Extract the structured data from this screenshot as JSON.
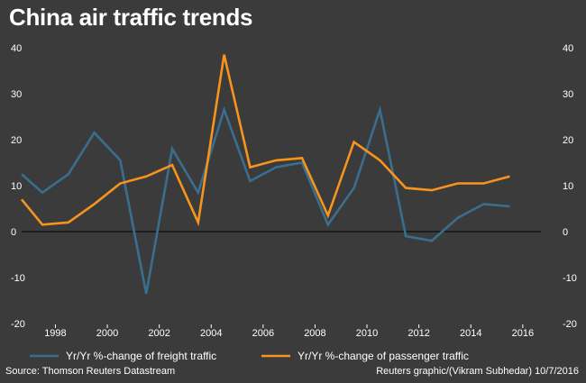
{
  "title": "China air traffic trends",
  "source": "Source: Thomson Reuters Datastream",
  "credit": "Reuters graphic/(Vikram Subhedar) 10/7/2016",
  "colors": {
    "background": "#3b3b3b",
    "freight": "#3a6e8f",
    "passenger": "#f7941d",
    "zero_line": "#000000",
    "text": "#ffffff"
  },
  "chart_data": {
    "type": "line",
    "title": "China air traffic trends",
    "xlabel": "",
    "ylabel": "",
    "xlim": [
      1996.7,
      2016.7
    ],
    "ylim": [
      -20,
      40
    ],
    "yticks": [
      -20,
      -10,
      0,
      10,
      20,
      30,
      40
    ],
    "xticks": [
      1998,
      2000,
      2002,
      2004,
      2006,
      2008,
      2010,
      2012,
      2014,
      2016
    ],
    "grid": false,
    "legend_position": "bottom",
    "series": [
      {
        "name": "Yr/Yr %-change of freight traffic",
        "color": "#3a6e8f",
        "x": [
          1996.7,
          1997.5,
          1998.5,
          1999.5,
          2000.5,
          2001.5,
          2002.5,
          2003.5,
          2004.5,
          2005.5,
          2006.5,
          2007.5,
          2008.5,
          2009.5,
          2010.5,
          2011.5,
          2012.5,
          2013.5,
          2014.5,
          2015.5
        ],
        "values": [
          12.5,
          8.5,
          12.5,
          21.5,
          15.5,
          -13.5,
          18.0,
          8.5,
          26.5,
          11.0,
          14.0,
          15.0,
          1.5,
          9.5,
          26.5,
          -1.0,
          -2.0,
          3.0,
          6.0,
          5.5
        ]
      },
      {
        "name": "Yr/Yr %-change of passenger traffic",
        "color": "#f7941d",
        "x": [
          1996.7,
          1997.5,
          1998.5,
          1999.5,
          2000.5,
          2001.5,
          2002.5,
          2003.5,
          2004.5,
          2005.5,
          2006.5,
          2007.5,
          2008.5,
          2009.5,
          2010.5,
          2011.5,
          2012.5,
          2013.5,
          2014.5,
          2015.5
        ],
        "values": [
          7.0,
          1.5,
          2.0,
          6.0,
          10.5,
          12.0,
          14.5,
          2.0,
          38.5,
          14.0,
          15.5,
          16.0,
          3.5,
          19.5,
          15.5,
          9.5,
          9.0,
          10.5,
          10.5,
          12.0
        ]
      }
    ]
  }
}
